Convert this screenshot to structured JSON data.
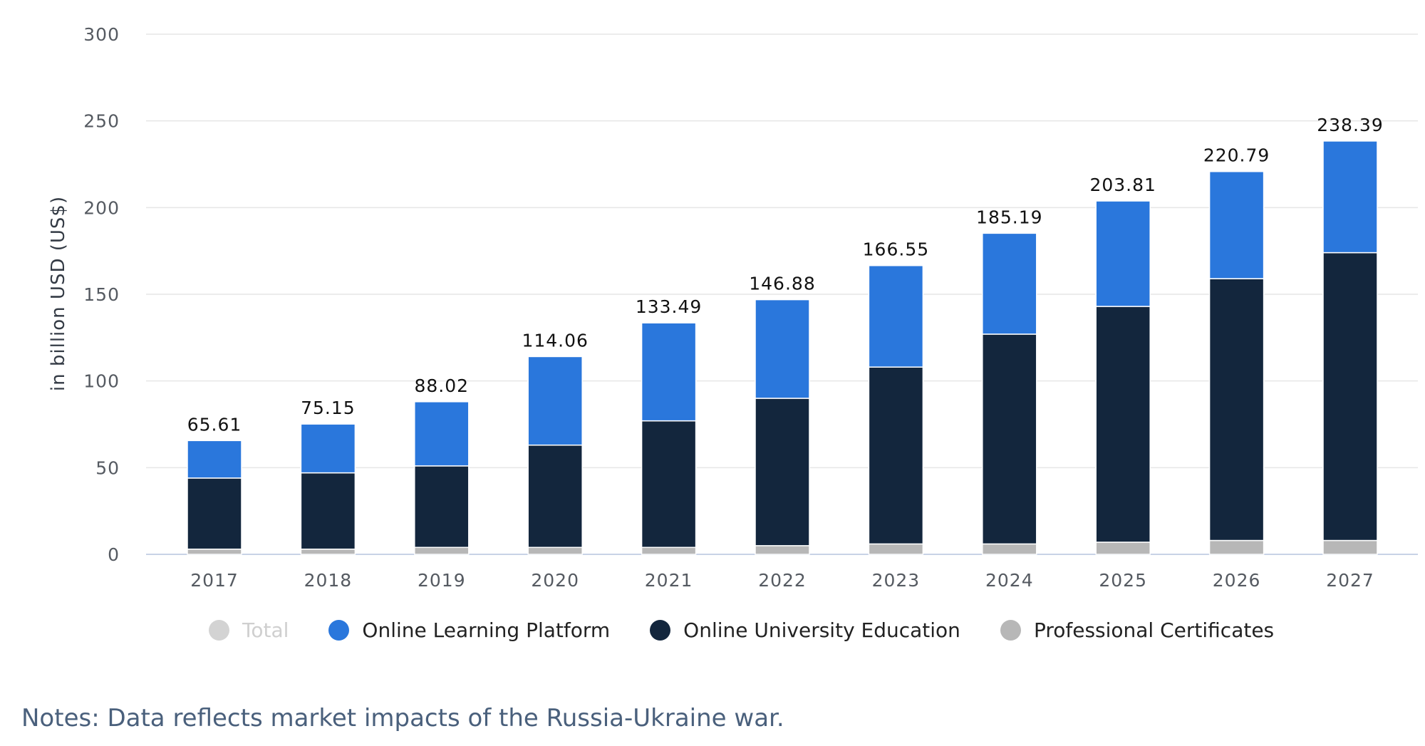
{
  "chart_data": {
    "type": "bar",
    "stacked": true,
    "categories": [
      "2017",
      "2018",
      "2019",
      "2020",
      "2021",
      "2022",
      "2023",
      "2024",
      "2025",
      "2026",
      "2027"
    ],
    "series": [
      {
        "name": "Professional Certificates",
        "color": "#b7b7b7",
        "values": [
          3.0,
          3.0,
          4.0,
          4.0,
          4.0,
          5.0,
          6.0,
          6.0,
          7.0,
          8.0,
          8.0
        ]
      },
      {
        "name": "Online University Education",
        "color": "#13263d",
        "values": [
          41.0,
          44.0,
          47.0,
          59.0,
          73.0,
          85.0,
          102.0,
          121.0,
          136.0,
          151.0,
          166.0
        ]
      },
      {
        "name": "Online Learning Platform",
        "color": "#2a77dc",
        "values": [
          21.61,
          28.15,
          37.02,
          51.06,
          56.49,
          56.88,
          58.55,
          58.19,
          60.81,
          61.79,
          64.39
        ]
      }
    ],
    "totals": [
      65.61,
      75.15,
      88.02,
      114.06,
      133.49,
      146.88,
      166.55,
      185.19,
      203.81,
      220.79,
      238.39
    ],
    "total_labels": [
      "65.61",
      "75.15",
      "88.02",
      "114.06",
      "133.49",
      "146.88",
      "166.55",
      "185.19",
      "203.81",
      "220.79",
      "238.39"
    ],
    "ylabel": "in billion USD (US$)",
    "ylim": [
      0,
      300
    ],
    "yticks": [
      0,
      50,
      100,
      150,
      200,
      250,
      300
    ],
    "grid": true,
    "legend_position": "bottom"
  },
  "legend": [
    {
      "label": "Total",
      "color": "#d3d3d3",
      "disabled": true
    },
    {
      "label": "Online Learning Platform",
      "color": "#2a77dc",
      "disabled": false
    },
    {
      "label": "Online University Education",
      "color": "#13263d",
      "disabled": false
    },
    {
      "label": "Professional Certificates",
      "color": "#b7b7b7",
      "disabled": false
    }
  ],
  "notes": "Notes: Data reflects market impacts of the Russia-Ukraine war."
}
